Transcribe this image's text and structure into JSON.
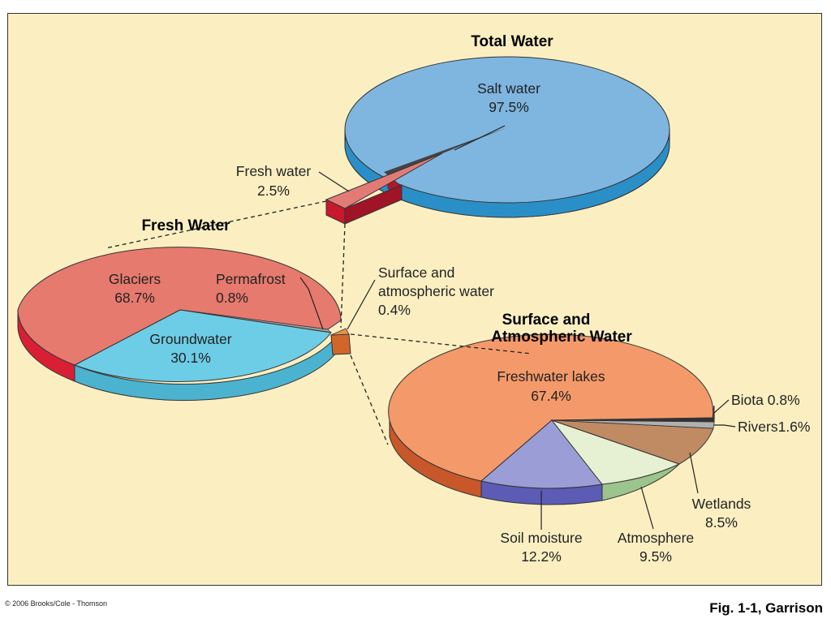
{
  "chart_data": [
    {
      "type": "pie",
      "title": "Total Water",
      "slices": [
        {
          "label": "Salt water",
          "value_text": "97.5%",
          "value": 97.5,
          "color": "#7fb6e0"
        },
        {
          "label": "Fresh water",
          "value_text": "2.5%",
          "value": 2.5,
          "color": "#d9534f"
        }
      ]
    },
    {
      "type": "pie",
      "title": "Fresh Water",
      "slices": [
        {
          "label": "Glaciers",
          "value_text": "68.7%",
          "value": 68.7,
          "color": "#e67a6e"
        },
        {
          "label": "Groundwater",
          "value_text": "30.1%",
          "value": 30.1,
          "color": "#6dcde6"
        },
        {
          "label": "Permafrost",
          "value_text": "0.8%",
          "value": 0.8,
          "color": "#a3a3a3"
        },
        {
          "label": "Surface and atmospheric water",
          "value_text": "0.4%",
          "value": 0.4,
          "color": "#e68a3c"
        }
      ]
    },
    {
      "type": "pie",
      "title": "Surface and Atmospheric Water",
      "slices": [
        {
          "label": "Freshwater lakes",
          "value_text": "67.4%",
          "value": 67.4,
          "color": "#f49a6a"
        },
        {
          "label": "Soil moisture",
          "value_text": "12.2%",
          "value": 12.2,
          "color": "#9b9ed6"
        },
        {
          "label": "Atmosphere",
          "value_text": "9.5%",
          "value": 9.5,
          "color": "#e6f0d2"
        },
        {
          "label": "Wetlands",
          "value_text": "8.5%",
          "value": 8.5,
          "color": "#c08a63"
        },
        {
          "label": "Rivers",
          "value_text": "1.6%",
          "value": 1.6,
          "color": "#b0b0b0"
        },
        {
          "label": "Biota",
          "value_text": "0.8%",
          "value": 0.8,
          "color": "#333333"
        }
      ]
    }
  ],
  "labels": {
    "total_title": "Total Water",
    "fresh_title": "Fresh Water",
    "surface_title_1": "Surface and",
    "surface_title_2": "Atmospheric Water",
    "salt_1": "Salt water",
    "salt_2": "97.5%",
    "freshw_1": "Fresh water",
    "freshw_2": "2.5%",
    "glaciers_1": "Glaciers",
    "glaciers_2": "68.7%",
    "permafrost_1": "Permafrost",
    "permafrost_2": "0.8%",
    "groundwater_1": "Groundwater",
    "groundwater_2": "30.1%",
    "saw_1": "Surface and",
    "saw_2": "atmospheric water",
    "saw_3": "0.4%",
    "lakes_1": "Freshwater lakes",
    "lakes_2": "67.4%",
    "biota": "Biota 0.8%",
    "rivers": "Rivers1.6%",
    "wetlands_1": "Wetlands",
    "wetlands_2": "8.5%",
    "atmosphere_1": "Atmosphere",
    "atmosphere_2": "9.5%",
    "soil_1": "Soil moisture",
    "soil_2": "12.2%"
  },
  "footer": {
    "copyright": "© 2006 Brooks/Cole - Thomson",
    "figure": "Fig. 1-1, Garrison"
  }
}
